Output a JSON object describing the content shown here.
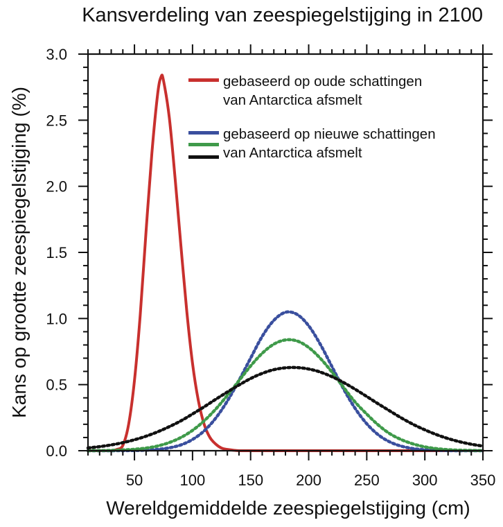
{
  "chart_data": {
    "type": "line",
    "title": "Kansverdeling van zeespiegelstijging in 2100",
    "xlabel": "Wereldgemiddelde zeespiegelstijging (cm)",
    "ylabel": "Kans op grootte zeespiegelstijging (%)",
    "xlim": [
      10,
      350
    ],
    "ylim": [
      0,
      3.0
    ],
    "x_ticks": [
      50,
      100,
      150,
      200,
      250,
      300,
      350
    ],
    "x_tick_labels": [
      "50",
      "100",
      "150",
      "200",
      "250",
      "300",
      "350"
    ],
    "x_minor_step": 10,
    "y_ticks": [
      0.0,
      0.5,
      1.0,
      1.5,
      2.0,
      2.5,
      3.0
    ],
    "y_tick_labels": [
      "0.0",
      "0.5",
      "1.0",
      "1.5",
      "2.0",
      "2.5",
      "3.0"
    ],
    "y_minor_step": 0.1,
    "grid": false,
    "legend_position": "top-right",
    "legend": [
      {
        "lines": [
          "gebaseerd op oude schattingen",
          "van Antarctica afsmelt"
        ],
        "swatches": [
          "#c8302e"
        ]
      },
      {
        "lines": [
          "gebaseerd op nieuwe schattingen",
          "van Antarctica afsmelt"
        ],
        "swatches": [
          "#3a4f9e",
          "#3f9a4a",
          "#111111"
        ]
      }
    ],
    "series": [
      {
        "name": "oude schattingen",
        "color": "#c8302e",
        "style": "solid",
        "x": [
          10,
          20,
          30,
          35,
          40,
          45,
          50,
          55,
          60,
          65,
          70,
          73,
          75,
          80,
          85,
          90,
          95,
          100,
          105,
          110,
          115,
          120,
          125,
          130,
          140,
          150,
          200,
          250,
          300,
          350
        ],
        "y": [
          0,
          0,
          0,
          0.01,
          0.04,
          0.2,
          0.53,
          1.03,
          1.66,
          2.25,
          2.7,
          2.83,
          2.8,
          2.52,
          2.06,
          1.55,
          1.06,
          0.66,
          0.38,
          0.2,
          0.1,
          0.05,
          0.02,
          0.01,
          0.0,
          0.0,
          0.0,
          0.0,
          0.0,
          0.0
        ]
      },
      {
        "name": "nieuwe schattingen (blauw)",
        "color": "#3a4f9e",
        "style": "dotted",
        "x": [
          10,
          20,
          30,
          40,
          50,
          60,
          70,
          80,
          90,
          100,
          110,
          120,
          130,
          140,
          150,
          160,
          170,
          180,
          190,
          200,
          210,
          220,
          230,
          240,
          250,
          260,
          270,
          280,
          290,
          300,
          310,
          320,
          330,
          340,
          350
        ],
        "y": [
          0,
          0.0001,
          0.0002,
          0.0006,
          0.0016,
          0.004,
          0.01,
          0.022,
          0.044,
          0.085,
          0.15,
          0.247,
          0.376,
          0.532,
          0.7,
          0.865,
          0.986,
          1.047,
          1.031,
          0.945,
          0.805,
          0.637,
          0.468,
          0.32,
          0.204,
          0.12,
          0.066,
          0.034,
          0.016,
          0.007,
          0.003,
          0.001,
          0,
          0,
          0
        ]
      },
      {
        "name": "nieuwe schattingen (groen)",
        "color": "#3f9a4a",
        "style": "dotted",
        "x": [
          10,
          20,
          30,
          40,
          50,
          60,
          70,
          80,
          90,
          100,
          110,
          120,
          130,
          140,
          150,
          160,
          170,
          180,
          190,
          200,
          210,
          220,
          230,
          240,
          250,
          260,
          270,
          280,
          290,
          300,
          310,
          320,
          330,
          340,
          350
        ],
        "y": [
          0,
          0.001,
          0.0026,
          0.006,
          0.011,
          0.02,
          0.036,
          0.062,
          0.1,
          0.154,
          0.226,
          0.315,
          0.419,
          0.53,
          0.641,
          0.737,
          0.806,
          0.838,
          0.83,
          0.781,
          0.699,
          0.595,
          0.48,
          0.368,
          0.277,
          0.194,
          0.128,
          0.083,
          0.051,
          0.029,
          0.016,
          0.008,
          0.004,
          0.002,
          0.001
        ]
      },
      {
        "name": "nieuwe schattingen (zwart)",
        "color": "#111111",
        "style": "dotted",
        "x": [
          10,
          20,
          30,
          40,
          50,
          60,
          70,
          80,
          90,
          100,
          110,
          120,
          130,
          140,
          150,
          160,
          170,
          180,
          190,
          200,
          210,
          220,
          230,
          240,
          250,
          260,
          270,
          280,
          290,
          300,
          310,
          320,
          330,
          340,
          350
        ],
        "y": [
          0.021,
          0.031,
          0.044,
          0.061,
          0.083,
          0.11,
          0.143,
          0.182,
          0.226,
          0.278,
          0.332,
          0.389,
          0.444,
          0.497,
          0.546,
          0.585,
          0.613,
          0.627,
          0.629,
          0.618,
          0.595,
          0.56,
          0.516,
          0.465,
          0.41,
          0.354,
          0.3,
          0.247,
          0.199,
          0.158,
          0.122,
          0.092,
          0.068,
          0.049,
          0.035
        ]
      }
    ]
  }
}
